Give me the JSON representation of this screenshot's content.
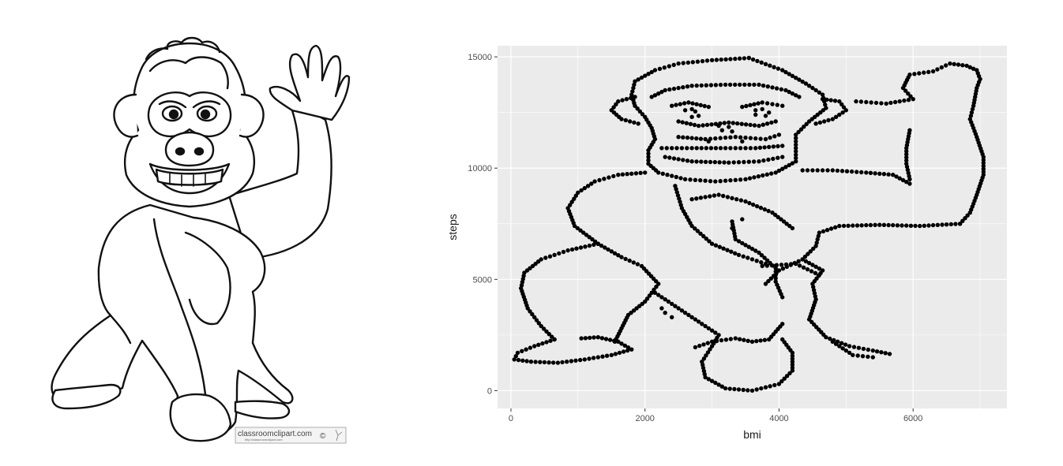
{
  "clipart": {
    "logo_text": "classroomclipart.com",
    "logo_url": "http://classroomclipart.com",
    "copyright": "©"
  },
  "chart_data": {
    "type": "scatter",
    "xlabel": "bmi",
    "ylabel": "steps",
    "xlim": [
      -200,
      7400
    ],
    "ylim": [
      -800,
      15500
    ],
    "x_ticks": [
      0,
      2000,
      4000,
      6000
    ],
    "y_ticks": [
      0,
      5000,
      10000,
      15000
    ],
    "x_tick_labels": [
      "0",
      "2000",
      "4000",
      "6000"
    ],
    "y_tick_labels": [
      "0",
      "5000",
      "10000",
      "15000"
    ],
    "grid": true,
    "legend": "none",
    "panel_background": "#ebebeb",
    "point_color": "#000000",
    "outlines": [
      [
        [
          3550,
          14950
        ],
        [
          3000,
          14850
        ],
        [
          2500,
          14700
        ],
        [
          2150,
          14400
        ],
        [
          1850,
          13900
        ],
        [
          1800,
          13300
        ],
        [
          1850,
          12800
        ],
        [
          2000,
          12300
        ],
        [
          2100,
          11800
        ],
        [
          2150,
          11300
        ],
        [
          2050,
          10800
        ],
        [
          2050,
          10200
        ],
        [
          2200,
          9800
        ],
        [
          2600,
          9500
        ],
        [
          3050,
          9400
        ],
        [
          3500,
          9500
        ],
        [
          3950,
          9800
        ],
        [
          4250,
          10300
        ],
        [
          4250,
          10900
        ],
        [
          4250,
          11500
        ],
        [
          4450,
          12100
        ],
        [
          4700,
          12700
        ],
        [
          4650,
          13300
        ],
        [
          4400,
          13800
        ],
        [
          4050,
          14400
        ],
        [
          3550,
          14950
        ]
      ],
      [
        [
          1850,
          13200
        ],
        [
          1600,
          13000
        ],
        [
          1500,
          12600
        ],
        [
          1650,
          12200
        ],
        [
          1900,
          12000
        ]
      ],
      [
        [
          4650,
          13100
        ],
        [
          4900,
          13000
        ],
        [
          5000,
          12600
        ],
        [
          4800,
          12200
        ],
        [
          4550,
          12000
        ]
      ],
      [
        [
          2100,
          13200
        ],
        [
          2300,
          13500
        ],
        [
          2700,
          13700
        ],
        [
          3200,
          13750
        ],
        [
          3700,
          13750
        ],
        [
          4100,
          13500
        ],
        [
          4300,
          13200
        ]
      ],
      [
        [
          2400,
          12800
        ],
        [
          2650,
          12950
        ],
        [
          2950,
          12750
        ]
      ],
      [
        [
          3450,
          12750
        ],
        [
          3750,
          12950
        ],
        [
          4050,
          12800
        ]
      ],
      [
        [
          2500,
          12100
        ],
        [
          2800,
          11900
        ],
        [
          3250,
          12050
        ],
        [
          3700,
          11900
        ],
        [
          3950,
          12100
        ]
      ],
      [
        [
          2500,
          11400
        ],
        [
          2900,
          11300
        ],
        [
          3350,
          11400
        ],
        [
          3800,
          11300
        ],
        [
          4000,
          11500
        ]
      ],
      [
        [
          2300,
          10500
        ],
        [
          2700,
          10300
        ],
        [
          3250,
          10250
        ],
        [
          3700,
          10300
        ],
        [
          4050,
          10500
        ]
      ],
      [
        [
          2250,
          10900
        ],
        [
          2700,
          10900
        ],
        [
          3200,
          10900
        ],
        [
          3650,
          10900
        ],
        [
          4050,
          11000
        ]
      ],
      [
        [
          4350,
          9900
        ],
        [
          4800,
          9900
        ],
        [
          5300,
          9800
        ],
        [
          5700,
          9700
        ],
        [
          5950,
          9300
        ]
      ],
      [
        [
          5950,
          11700
        ],
        [
          5900,
          10900
        ],
        [
          5900,
          10200
        ],
        [
          5950,
          9500
        ]
      ],
      [
        [
          5150,
          13000
        ],
        [
          5600,
          12900
        ],
        [
          6000,
          13100
        ],
        [
          5850,
          13600
        ],
        [
          5950,
          14200
        ],
        [
          6300,
          14350
        ],
        [
          6550,
          14700
        ],
        [
          6800,
          14600
        ],
        [
          6950,
          14400
        ],
        [
          7000,
          14000
        ],
        [
          6950,
          13600
        ],
        [
          6900,
          12800
        ],
        [
          6850,
          12200
        ],
        [
          6950,
          11400
        ],
        [
          7050,
          10500
        ],
        [
          7050,
          9700
        ],
        [
          6950,
          8800
        ],
        [
          6850,
          8000
        ],
        [
          6700,
          7500
        ]
      ],
      [
        [
          6700,
          7500
        ],
        [
          6100,
          7400
        ],
        [
          5500,
          7450
        ],
        [
          4900,
          7400
        ],
        [
          4600,
          7100
        ],
        [
          4550,
          6500
        ],
        [
          4350,
          5900
        ],
        [
          4000,
          5400
        ],
        [
          3800,
          4800
        ]
      ],
      [
        [
          4350,
          5900
        ],
        [
          4650,
          5400
        ],
        [
          4500,
          4800
        ],
        [
          4550,
          4100
        ],
        [
          4450,
          3200
        ],
        [
          4700,
          2400
        ],
        [
          5050,
          2000
        ],
        [
          5400,
          1800
        ],
        [
          5650,
          1650
        ]
      ],
      [
        [
          4050,
          3000
        ],
        [
          3850,
          2300
        ],
        [
          3600,
          2200
        ],
        [
          3350,
          2350
        ],
        [
          3000,
          2200
        ],
        [
          2750,
          1950
        ]
      ],
      [
        [
          2000,
          9800
        ],
        [
          1600,
          9700
        ],
        [
          1250,
          9400
        ],
        [
          1000,
          8900
        ],
        [
          850,
          8200
        ],
        [
          950,
          7400
        ],
        [
          1300,
          6600
        ]
      ],
      [
        [
          1300,
          6600
        ],
        [
          850,
          6300
        ],
        [
          450,
          5900
        ],
        [
          200,
          5300
        ],
        [
          150,
          4600
        ],
        [
          250,
          3700
        ],
        [
          450,
          2900
        ],
        [
          650,
          2300
        ]
      ],
      [
        [
          650,
          2300
        ],
        [
          350,
          2000
        ],
        [
          100,
          1700
        ],
        [
          50,
          1400
        ],
        [
          300,
          1300
        ],
        [
          700,
          1250
        ],
        [
          1100,
          1400
        ],
        [
          1500,
          1600
        ],
        [
          1800,
          1850
        ],
        [
          1600,
          2200
        ],
        [
          1300,
          2400
        ],
        [
          1050,
          2350
        ]
      ],
      [
        [
          1300,
          6600
        ],
        [
          1650,
          6000
        ],
        [
          1950,
          5600
        ],
        [
          2200,
          4800
        ],
        [
          2000,
          4000
        ],
        [
          1750,
          3400
        ],
        [
          1650,
          2800
        ],
        [
          1550,
          2200
        ]
      ],
      [
        [
          2150,
          4400
        ],
        [
          2500,
          3700
        ],
        [
          2850,
          3000
        ],
        [
          3100,
          2500
        ],
        [
          3000,
          2000
        ],
        [
          2850,
          1300
        ],
        [
          2900,
          600
        ],
        [
          3200,
          100
        ],
        [
          3600,
          0
        ],
        [
          4000,
          300
        ],
        [
          4200,
          900
        ],
        [
          4200,
          1700
        ],
        [
          4050,
          2300
        ]
      ],
      [
        [
          2450,
          9200
        ],
        [
          2550,
          8200
        ],
        [
          2700,
          7400
        ],
        [
          3000,
          6600
        ],
        [
          3400,
          6100
        ],
        [
          3800,
          5700
        ]
      ],
      [
        [
          2700,
          8600
        ],
        [
          3100,
          8800
        ],
        [
          3500,
          8500
        ],
        [
          3900,
          8000
        ],
        [
          4200,
          7300
        ]
      ],
      [
        [
          3300,
          7600
        ],
        [
          3350,
          6800
        ],
        [
          3700,
          6200
        ],
        [
          3950,
          5500
        ],
        [
          3950,
          4900
        ],
        [
          4050,
          4200
        ]
      ],
      [
        [
          3750,
          5600
        ],
        [
          4250,
          5700
        ],
        [
          4600,
          5200
        ]
      ],
      [
        [
          4800,
          2200
        ],
        [
          5100,
          1600
        ],
        [
          5400,
          1500
        ]
      ]
    ],
    "extra_points": [
      [
        3100,
        11900
      ],
      [
        3250,
        11850
      ],
      [
        3150,
        11700
      ],
      [
        3300,
        11650
      ],
      [
        2600,
        12600
      ],
      [
        2700,
        12650
      ],
      [
        2750,
        12550
      ],
      [
        3650,
        12600
      ],
      [
        3750,
        12650
      ],
      [
        3850,
        12500
      ],
      [
        2700,
        12300
      ],
      [
        2800,
        12350
      ],
      [
        3650,
        12400
      ],
      [
        3800,
        12350
      ],
      [
        2950,
        11200
      ],
      [
        3450,
        11200
      ],
      [
        3450,
        7700
      ],
      [
        3300,
        7300
      ],
      [
        2300,
        3500
      ],
      [
        2400,
        3300
      ],
      [
        2250,
        3700
      ]
    ]
  }
}
